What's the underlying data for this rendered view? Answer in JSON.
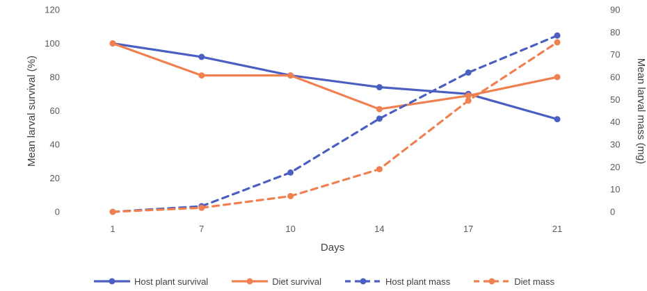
{
  "chart_data": {
    "type": "line",
    "categories": [
      "1",
      "7",
      "10",
      "14",
      "17",
      "21"
    ],
    "xlabel": "Days",
    "ylabel": "Mean larval survival (%)",
    "y2label": "Mean larval mass (mg)",
    "ylim": [
      0,
      120
    ],
    "y2lim": [
      0,
      90
    ],
    "yticks": [
      "0",
      "20",
      "40",
      "60",
      "80",
      "100",
      "120"
    ],
    "y2ticks": [
      "0",
      "10",
      "20",
      "30",
      "40",
      "50",
      "60",
      "70",
      "80",
      "90"
    ],
    "grid": false,
    "legend_position": "bottom",
    "series": [
      {
        "name": "Host plant survival",
        "axis": "left",
        "style": "solid",
        "color": "#4a5fc1",
        "values": [
          100,
          92,
          81,
          74,
          70,
          55
        ]
      },
      {
        "name": "Diet survival",
        "axis": "left",
        "style": "solid",
        "color": "#f08050",
        "values": [
          100,
          81,
          81,
          61,
          69,
          80
        ]
      },
      {
        "name": "Host plant mass",
        "axis": "right",
        "style": "dashed",
        "color": "#4a5fc1",
        "values": [
          0,
          2.5,
          17.5,
          41.5,
          62,
          78.5
        ]
      },
      {
        "name": "Diet mass",
        "axis": "right",
        "style": "dashed",
        "color": "#f08050",
        "values": [
          0,
          1.8,
          7,
          19,
          49.5,
          75.5
        ]
      }
    ]
  }
}
